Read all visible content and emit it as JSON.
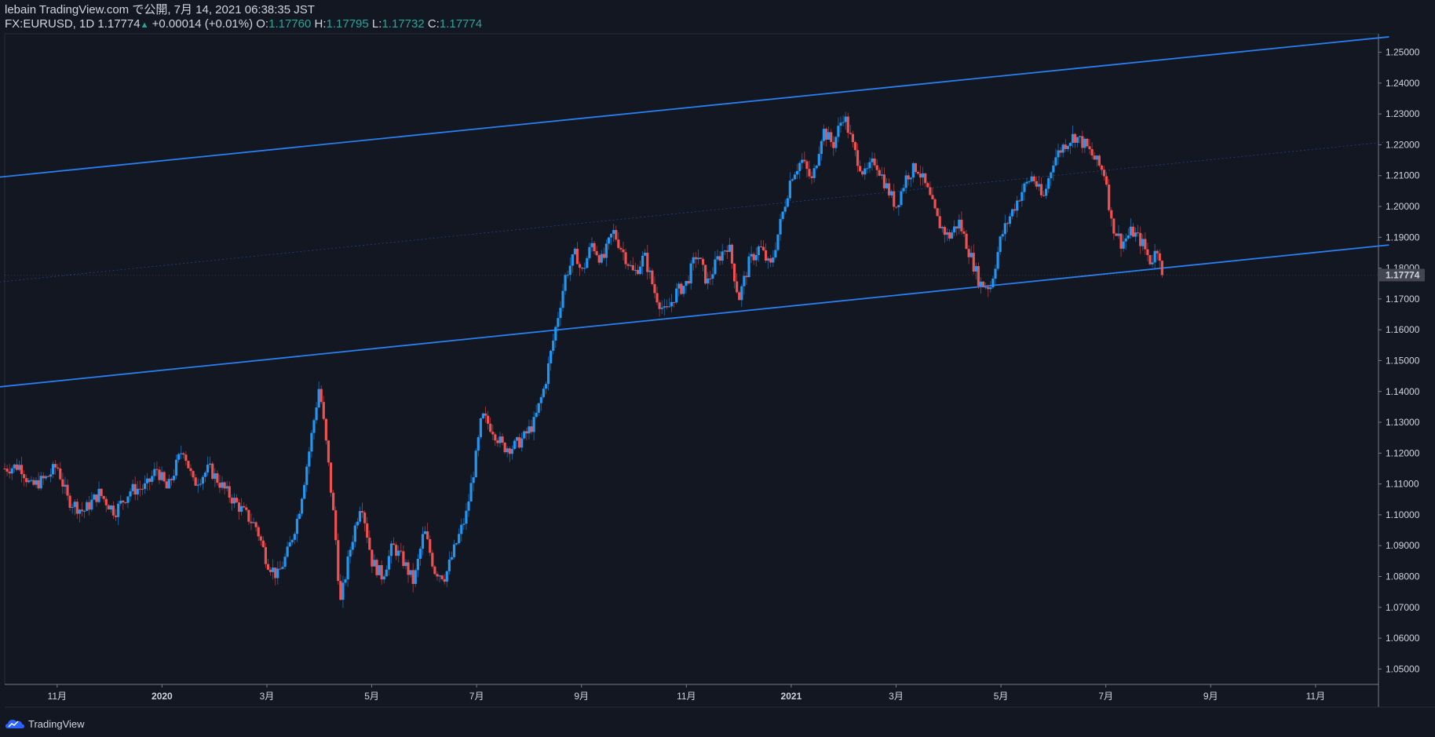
{
  "header": {
    "published_line": "lebain TradingView.com で公開, 7月 14, 2021 06:38:35 JST",
    "symbol": "FX:EURUSD, 1D",
    "last_price": "1.17774",
    "change": "+0.00014 (+0.01%)",
    "open_label": "O:",
    "open": "1.17760",
    "high_label": "H:",
    "high": "1.17795",
    "low_label": "L:",
    "low": "1.17732",
    "close_label": "C:",
    "close": "1.17774"
  },
  "brand": {
    "name": "TradingView"
  },
  "colors": {
    "background": "#131722",
    "up": "#2196f3",
    "down": "#f0504f",
    "trendline": "#2a7ff0",
    "axis": "#787b86",
    "price_label_bg": "#434651"
  },
  "chart_data": {
    "type": "candlestick",
    "symbol": "EURUSD",
    "interval": "1D",
    "ylim": [
      1.045,
      1.256
    ],
    "y_ticks": [
      "1.25000",
      "1.24000",
      "1.23000",
      "1.22000",
      "1.21000",
      "1.20000",
      "1.19000",
      "1.18000",
      "1.17000",
      "1.16000",
      "1.15000",
      "1.14000",
      "1.13000",
      "1.12000",
      "1.11000",
      "1.10000",
      "1.09000",
      "1.08000",
      "1.07000",
      "1.06000",
      "1.05000"
    ],
    "current_price_label": "1.17774",
    "current_price": 1.17774,
    "x_ticks": [
      {
        "label": "11月",
        "month": 1,
        "bold": false
      },
      {
        "label": "2020",
        "month": 3,
        "bold": true
      },
      {
        "label": "3月",
        "month": 5,
        "bold": false
      },
      {
        "label": "5月",
        "month": 7,
        "bold": false
      },
      {
        "label": "7月",
        "month": 9,
        "bold": false
      },
      {
        "label": "9月",
        "month": 11,
        "bold": false
      },
      {
        "label": "11月",
        "month": 13,
        "bold": false
      },
      {
        "label": "2021",
        "month": 15,
        "bold": true
      },
      {
        "label": "3月",
        "month": 17,
        "bold": false
      },
      {
        "label": "5月",
        "month": 19,
        "bold": false
      },
      {
        "label": "7月",
        "month": 21,
        "bold": false
      },
      {
        "label": "9月",
        "month": 23,
        "bold": false
      },
      {
        "label": "11月",
        "month": 25,
        "bold": false
      }
    ],
    "x_range_months": [
      0.0,
      26.2
    ],
    "month_origin": "2019-10",
    "price_path": [
      [
        0.0,
        1.115
      ],
      [
        0.3,
        1.116
      ],
      [
        0.5,
        1.109
      ],
      [
        0.8,
        1.112
      ],
      [
        1.0,
        1.116
      ],
      [
        1.2,
        1.105
      ],
      [
        1.5,
        1.101
      ],
      [
        1.8,
        1.107
      ],
      [
        2.1,
        1.101
      ],
      [
        2.4,
        1.108
      ],
      [
        2.7,
        1.109
      ],
      [
        2.9,
        1.115
      ],
      [
        3.1,
        1.108
      ],
      [
        3.4,
        1.122
      ],
      [
        3.6,
        1.11
      ],
      [
        3.9,
        1.115
      ],
      [
        4.2,
        1.108
      ],
      [
        4.5,
        1.102
      ],
      [
        4.8,
        1.096
      ],
      [
        5.0,
        1.085
      ],
      [
        5.2,
        1.08
      ],
      [
        5.4,
        1.088
      ],
      [
        5.6,
        1.1
      ],
      [
        5.8,
        1.12
      ],
      [
        6.0,
        1.142
      ],
      [
        6.15,
        1.12
      ],
      [
        6.3,
        1.095
      ],
      [
        6.4,
        1.071
      ],
      [
        6.6,
        1.09
      ],
      [
        6.8,
        1.105
      ],
      [
        7.0,
        1.085
      ],
      [
        7.2,
        1.08
      ],
      [
        7.4,
        1.09
      ],
      [
        7.6,
        1.085
      ],
      [
        7.8,
        1.078
      ],
      [
        8.0,
        1.095
      ],
      [
        8.2,
        1.082
      ],
      [
        8.4,
        1.08
      ],
      [
        8.6,
        1.09
      ],
      [
        8.8,
        1.1
      ],
      [
        9.0,
        1.12
      ],
      [
        9.1,
        1.132
      ],
      [
        9.3,
        1.128
      ],
      [
        9.5,
        1.122
      ],
      [
        9.7,
        1.122
      ],
      [
        9.9,
        1.125
      ],
      [
        10.1,
        1.13
      ],
      [
        10.3,
        1.142
      ],
      [
        10.5,
        1.16
      ],
      [
        10.7,
        1.178
      ],
      [
        10.9,
        1.185
      ],
      [
        11.0,
        1.178
      ],
      [
        11.2,
        1.188
      ],
      [
        11.4,
        1.182
      ],
      [
        11.6,
        1.192
      ],
      [
        11.8,
        1.185
      ],
      [
        12.0,
        1.178
      ],
      [
        12.2,
        1.184
      ],
      [
        12.4,
        1.172
      ],
      [
        12.6,
        1.165
      ],
      [
        12.8,
        1.172
      ],
      [
        13.0,
        1.175
      ],
      [
        13.2,
        1.185
      ],
      [
        13.4,
        1.175
      ],
      [
        13.6,
        1.183
      ],
      [
        13.8,
        1.188
      ],
      [
        14.0,
        1.17
      ],
      [
        14.2,
        1.182
      ],
      [
        14.4,
        1.187
      ],
      [
        14.6,
        1.18
      ],
      [
        14.8,
        1.195
      ],
      [
        15.0,
        1.21
      ],
      [
        15.2,
        1.215
      ],
      [
        15.4,
        1.208
      ],
      [
        15.6,
        1.225
      ],
      [
        15.8,
        1.22
      ],
      [
        16.0,
        1.23
      ],
      [
        16.2,
        1.218
      ],
      [
        16.4,
        1.21
      ],
      [
        16.6,
        1.215
      ],
      [
        16.8,
        1.207
      ],
      [
        17.0,
        1.2
      ],
      [
        17.2,
        1.21
      ],
      [
        17.4,
        1.213
      ],
      [
        17.6,
        1.205
      ],
      [
        17.8,
        1.195
      ],
      [
        18.0,
        1.19
      ],
      [
        18.2,
        1.195
      ],
      [
        18.4,
        1.185
      ],
      [
        18.6,
        1.175
      ],
      [
        18.8,
        1.174
      ],
      [
        19.0,
        1.19
      ],
      [
        19.2,
        1.198
      ],
      [
        19.4,
        1.205
      ],
      [
        19.6,
        1.21
      ],
      [
        19.8,
        1.202
      ],
      [
        20.0,
        1.215
      ],
      [
        20.2,
        1.22
      ],
      [
        20.4,
        1.223
      ],
      [
        20.6,
        1.22
      ],
      [
        20.8,
        1.215
      ],
      [
        21.0,
        1.21
      ],
      [
        21.1,
        1.195
      ],
      [
        21.3,
        1.188
      ],
      [
        21.5,
        1.192
      ],
      [
        21.7,
        1.188
      ],
      [
        21.85,
        1.182
      ],
      [
        22.0,
        1.187
      ],
      [
        22.1,
        1.1777
      ]
    ],
    "trendlines": [
      {
        "name": "upper-channel",
        "p1": [
          -0.1,
          1.2095
        ],
        "p2": [
          26.4,
          1.255
        ]
      },
      {
        "name": "lower-channel",
        "p1": [
          -0.1,
          1.1415
        ],
        "p2": [
          26.4,
          1.1875
        ]
      },
      {
        "name": "mid-channel",
        "p1": [
          -0.1,
          1.1755
        ],
        "p2": [
          26.4,
          1.221
        ],
        "dashed": true
      }
    ]
  }
}
